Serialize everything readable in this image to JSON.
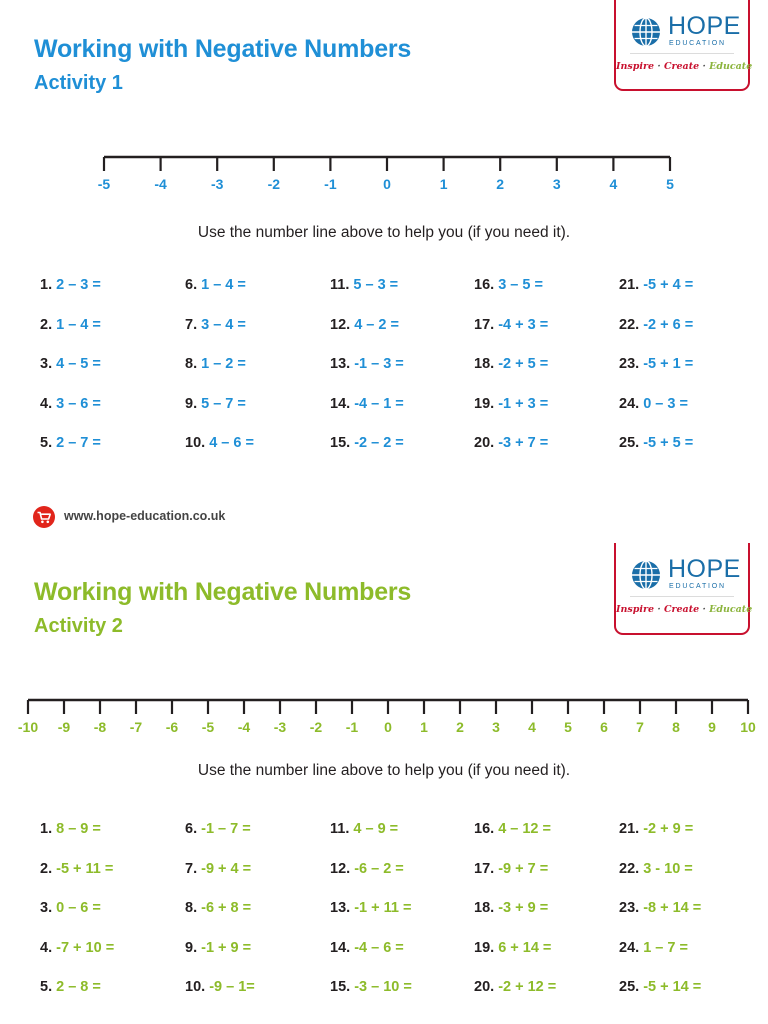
{
  "colors": {
    "accent1": "#1f8fd6",
    "accent2": "#8dbb2a",
    "brand_blue": "#1a6ea8",
    "brand_red": "#c8102e",
    "text": "#231f20"
  },
  "logo": {
    "word": "HOPE",
    "sub": "EDUCATION",
    "tag_inspire": "Inspire",
    "tag_create": "Create",
    "tag_educate": "Educate",
    "tag_sep": "·",
    "icon": "globe-icon"
  },
  "activity1": {
    "title": "Working with Negative Numbers",
    "subtitle": "Activity 1",
    "number_line": [
      "-5",
      "-4",
      "-3",
      "-2",
      "-1",
      "0",
      "1",
      "2",
      "3",
      "4",
      "5"
    ],
    "hint": "Use the number line above to help you (if you need it).",
    "questions": [
      {
        "n": "1.",
        "e": "2 – 3 ="
      },
      {
        "n": "2.",
        "e": "1 – 4 ="
      },
      {
        "n": "3.",
        "e": "4 – 5 ="
      },
      {
        "n": "4.",
        "e": "3 – 6 ="
      },
      {
        "n": "5.",
        "e": "2 – 7 ="
      },
      {
        "n": "6.",
        "e": "1 – 4 ="
      },
      {
        "n": "7.",
        "e": "3 – 4 ="
      },
      {
        "n": "8.",
        "e": "1 – 2 ="
      },
      {
        "n": "9.",
        "e": "5 – 7 ="
      },
      {
        "n": "10.",
        "e": "4 – 6 ="
      },
      {
        "n": "11.",
        "e": "5 – 3 ="
      },
      {
        "n": "12.",
        "e": "4 – 2 ="
      },
      {
        "n": "13.",
        "e": "-1 – 3 ="
      },
      {
        "n": "14.",
        "e": "-4 – 1 ="
      },
      {
        "n": "15.",
        "e": "-2 – 2 ="
      },
      {
        "n": "16.",
        "e": "3 – 5 ="
      },
      {
        "n": "17.",
        "e": "-4 + 3 ="
      },
      {
        "n": "18.",
        "e": "-2 + 5 ="
      },
      {
        "n": "19.",
        "e": "-1 + 3 ="
      },
      {
        "n": "20.",
        "e": "-3 + 7 ="
      },
      {
        "n": "21.",
        "e": "-5 + 4 ="
      },
      {
        "n": "22.",
        "e": "-2 + 6 ="
      },
      {
        "n": "23.",
        "e": "-5 + 1 ="
      },
      {
        "n": "24.",
        "e": "0 – 3 ="
      },
      {
        "n": "25.",
        "e": "-5 + 5 ="
      }
    ]
  },
  "footer": {
    "url": "www.hope-education.co.uk",
    "icon": "shopping-cart-icon"
  },
  "activity2": {
    "title": "Working with Negative Numbers",
    "subtitle": "Activity 2",
    "number_line": [
      "-10",
      "-9",
      "-8",
      "-7",
      "-6",
      "-5",
      "-4",
      "-3",
      "-2",
      "-1",
      "0",
      "1",
      "2",
      "3",
      "4",
      "5",
      "6",
      "7",
      "8",
      "9",
      "10"
    ],
    "hint": "Use the number line above to help you (if you need it).",
    "questions": [
      {
        "n": "1.",
        "e": "8 – 9 ="
      },
      {
        "n": "2.",
        "e": "-5 + 11 ="
      },
      {
        "n": "3.",
        "e": "0 – 6 ="
      },
      {
        "n": "4.",
        "e": "-7 + 10 ="
      },
      {
        "n": "5.",
        "e": "2 – 8 ="
      },
      {
        "n": "6.",
        "e": "-1 – 7 ="
      },
      {
        "n": "7.",
        "e": "-9 + 4 ="
      },
      {
        "n": "8.",
        "e": "-6 + 8 ="
      },
      {
        "n": "9.",
        "e": "-1 + 9 ="
      },
      {
        "n": "10.",
        "e": "-9 – 1="
      },
      {
        "n": "11.",
        "e": "4 – 9 ="
      },
      {
        "n": "12.",
        "e": "-6 – 2 ="
      },
      {
        "n": "13.",
        "e": "-1 + 11 ="
      },
      {
        "n": "14.",
        "e": "-4 – 6 ="
      },
      {
        "n": "15.",
        "e": "-3 – 10 ="
      },
      {
        "n": "16.",
        "e": "4 – 12 ="
      },
      {
        "n": "17.",
        "e": "-9 + 7 ="
      },
      {
        "n": "18.",
        "e": "-3 + 9 ="
      },
      {
        "n": "19.",
        "e": "6 + 14 ="
      },
      {
        "n": "20.",
        "e": "-2 + 12 ="
      },
      {
        "n": "21.",
        "e": "-2 + 9 ="
      },
      {
        "n": "22.",
        "e": "3 - 10 ="
      },
      {
        "n": "23.",
        "e": "-8 + 14 ="
      },
      {
        "n": "24.",
        "e": "1 – 7 ="
      },
      {
        "n": "25.",
        "e": "-5 + 14 ="
      }
    ]
  }
}
